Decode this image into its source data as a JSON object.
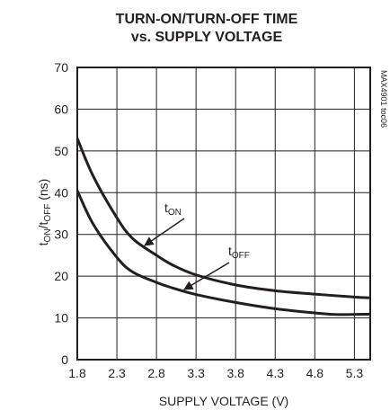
{
  "chart_data": {
    "type": "line",
    "title": "TURN-ON/TURN-OFF TIME",
    "subtitle": "vs. SUPPLY VOLTAGE",
    "xlabel": "SUPPLY VOLTAGE (V)",
    "ylabel": {
      "main": "t",
      "sub1": "ON",
      "sep": "/t",
      "sub2": "OFF",
      "unit": " (ns)"
    },
    "xlim": [
      1.8,
      5.5
    ],
    "ylim": [
      0,
      70
    ],
    "x_ticks": [
      "1.8",
      "2.3",
      "2.8",
      "3.3",
      "3.8",
      "4.3",
      "4.8",
      "5.3"
    ],
    "y_ticks": [
      "0",
      "10",
      "20",
      "30",
      "40",
      "50",
      "60",
      "70"
    ],
    "grid": true,
    "side_note": "MAX4901 toc06",
    "series": [
      {
        "name": "tON",
        "name_main": "t",
        "name_sub": "ON",
        "x": [
          1.8,
          2.0,
          2.3,
          2.5,
          2.8,
          3.0,
          3.3,
          3.8,
          4.3,
          4.8,
          5.3,
          5.5
        ],
        "y": [
          53,
          44,
          34,
          29,
          25,
          22.7,
          20.3,
          17.9,
          16.5,
          15.7,
          15,
          14.8
        ]
      },
      {
        "name": "tOFF",
        "name_main": "t",
        "name_sub": "OFF",
        "x": [
          1.8,
          2.0,
          2.3,
          2.5,
          2.8,
          3.0,
          3.3,
          3.8,
          4.3,
          4.8,
          5.1,
          5.5
        ],
        "y": [
          40.5,
          32.5,
          24.5,
          21,
          18.5,
          17.2,
          15.6,
          13.7,
          12.2,
          11.2,
          10.8,
          10.9
        ]
      }
    ]
  }
}
